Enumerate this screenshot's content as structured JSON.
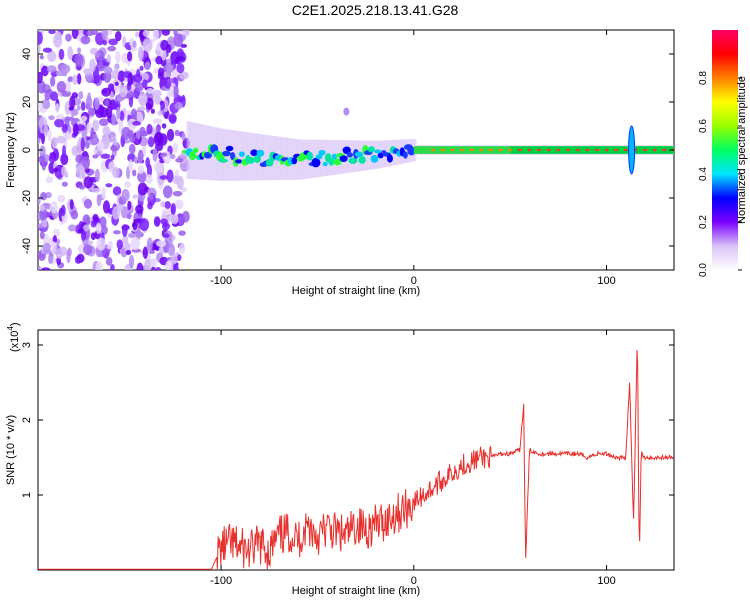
{
  "title": "C2E1.2025.218.13.41.G28",
  "chart_data": [
    {
      "type": "heatmap",
      "xlabel": "Height of straight line (km)",
      "ylabel": "Frequency (Hz)",
      "xlim": [
        -195,
        135
      ],
      "ylim": [
        -50,
        50
      ],
      "x_ticks": [
        -100,
        0,
        100
      ],
      "y_ticks": [
        -40,
        -20,
        0,
        20,
        40
      ],
      "colorbar": {
        "label": "Normalized spectral amplitude",
        "range": [
          0,
          1
        ],
        "ticks": [
          "0.0",
          "0.2",
          "0.4",
          "0.6",
          "0.8"
        ],
        "colors": [
          "#ffffff",
          "#d9c2f7",
          "#7a00ff",
          "#0000ff",
          "#00e5ff",
          "#00ff60",
          "#9aff00",
          "#ffff00",
          "#ff8000",
          "#ff0000",
          "#ff0066"
        ]
      },
      "features": [
        {
          "name": "noise region",
          "x_range": [
            -195,
            -118
          ],
          "frequency_range": [
            -50,
            50
          ],
          "amplitude": 0.05
        },
        {
          "name": "signal band",
          "points": [
            [
              -118,
              0
            ],
            [
              -100,
              -2
            ],
            [
              -80,
              -3
            ],
            [
              -60,
              -4
            ],
            [
              -40,
              -3
            ],
            [
              -20,
              -2
            ],
            [
              0,
              0
            ],
            [
              50,
              0
            ],
            [
              135,
              0
            ]
          ]
        },
        {
          "name": "spike",
          "x": 113,
          "frequency_range": [
            -10,
            10
          ]
        },
        {
          "name": "isolated blob",
          "x": -35,
          "frequency": 16
        }
      ]
    },
    {
      "type": "line",
      "xlabel": "Height of straight line (km)",
      "ylabel": "SNR (10 * v/v)",
      "y_multiplier": "(x10",
      "y_multiplier_exp": "4",
      "y_multiplier_close": ")",
      "xlim": [
        -195,
        135
      ],
      "ylim": [
        0,
        3.2
      ],
      "x_ticks": [
        -100,
        0,
        100
      ],
      "y_ticks": [
        1,
        2,
        3
      ],
      "series_color": "#e8302c",
      "x": [
        -195,
        -160,
        -130,
        -105,
        -100,
        -95,
        -90,
        -85,
        -80,
        -75,
        -70,
        -65,
        -60,
        -55,
        -50,
        -45,
        -40,
        -35,
        -30,
        -25,
        -20,
        -15,
        -10,
        -5,
        0,
        5,
        10,
        15,
        20,
        25,
        30,
        35,
        40,
        45,
        50,
        55,
        57,
        58,
        60,
        65,
        70,
        75,
        80,
        85,
        90,
        95,
        100,
        105,
        110,
        112,
        114,
        116,
        117,
        118,
        119,
        120,
        125,
        130,
        135
      ],
      "y": [
        0.01,
        0.01,
        0.01,
        0.01,
        0.3,
        0.35,
        0.3,
        0.25,
        0.35,
        0.25,
        0.45,
        0.5,
        0.4,
        0.6,
        0.45,
        0.55,
        0.5,
        0.45,
        0.6,
        0.55,
        0.6,
        0.65,
        0.75,
        0.8,
        0.9,
        1.0,
        1.1,
        1.2,
        1.3,
        1.4,
        1.45,
        1.5,
        1.5,
        1.55,
        1.55,
        1.6,
        2.2,
        0.1,
        1.6,
        1.55,
        1.55,
        1.55,
        1.55,
        1.55,
        1.5,
        1.55,
        1.55,
        1.5,
        1.5,
        2.5,
        0.6,
        3.2,
        0.1,
        1.6,
        1.5,
        1.5,
        1.5,
        1.5,
        1.5
      ]
    }
  ]
}
